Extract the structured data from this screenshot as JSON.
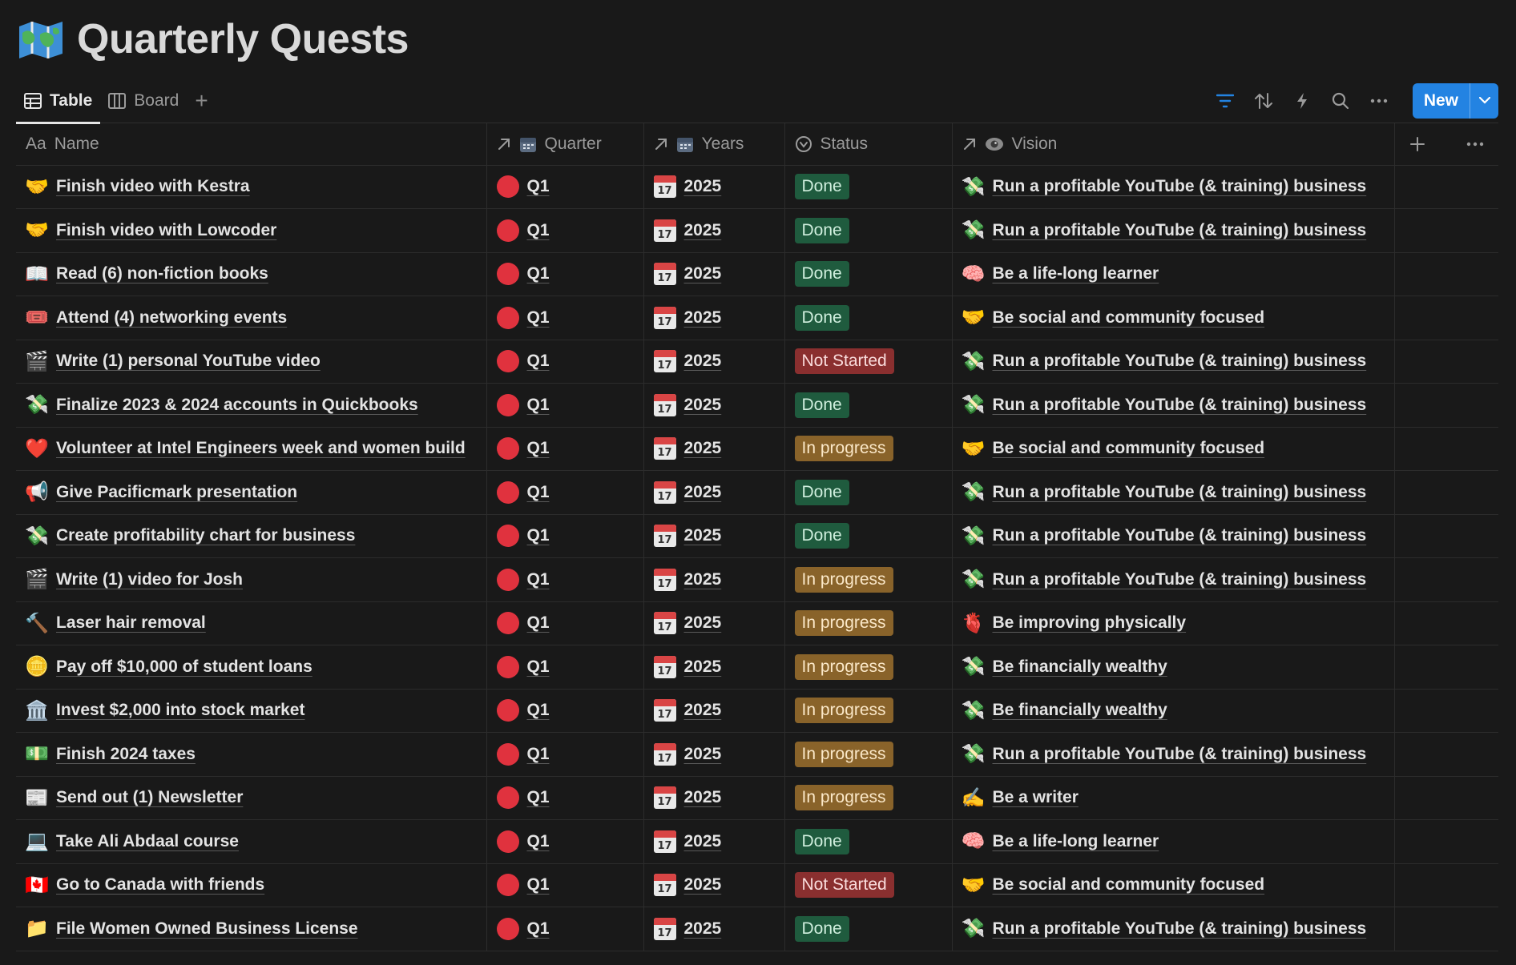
{
  "page": {
    "title": "Quarterly Quests",
    "icon": "map-icon"
  },
  "views": {
    "tabs": [
      {
        "label": "Table",
        "icon": "table-icon",
        "active": true
      },
      {
        "label": "Board",
        "icon": "board-icon",
        "active": false
      }
    ],
    "add_icon": "+",
    "new_label": "New"
  },
  "colors": {
    "accent": "#2383e2",
    "done": "#1f5b3e",
    "in_progress": "#89632a",
    "not_started": "#8a2f2f",
    "quarter_dot": "#e0323e"
  },
  "columns": {
    "name": "Name",
    "name_prefix": "Aa",
    "quarter": "Quarter",
    "years": "Years",
    "status": "Status",
    "vision": "Vision"
  },
  "calendar_glyph": "17",
  "rows": [
    {
      "icon": "🤝",
      "name": "Finish video with Kestra",
      "quarter": "Q1",
      "year": "2025",
      "status": "Done",
      "vision_icon": "💸",
      "vision": "Run a profitable YouTube (& training) business"
    },
    {
      "icon": "🤝",
      "name": "Finish video with Lowcoder",
      "quarter": "Q1",
      "year": "2025",
      "status": "Done",
      "vision_icon": "💸",
      "vision": "Run a profitable YouTube (& training) business"
    },
    {
      "icon": "📖",
      "name": "Read (6) non-fiction books",
      "quarter": "Q1",
      "year": "2025",
      "status": "Done",
      "vision_icon": "🧠",
      "vision": "Be a life-long learner"
    },
    {
      "icon": "🎟️",
      "name": "Attend (4) networking events",
      "quarter": "Q1",
      "year": "2025",
      "status": "Done",
      "vision_icon": "🤝",
      "vision": "Be social and community focused"
    },
    {
      "icon": "🎬",
      "name": "Write (1) personal YouTube video",
      "quarter": "Q1",
      "year": "2025",
      "status": "Not Started",
      "vision_icon": "💸",
      "vision": "Run a profitable YouTube (& training) business"
    },
    {
      "icon": "💸",
      "name": "Finalize 2023 & 2024 accounts in Quickbooks",
      "quarter": "Q1",
      "year": "2025",
      "status": "Done",
      "vision_icon": "💸",
      "vision": "Run a profitable YouTube (& training) business"
    },
    {
      "icon": "❤️",
      "name": "Volunteer at Intel Engineers week and women build",
      "quarter": "Q1",
      "year": "2025",
      "status": "In progress",
      "vision_icon": "🤝",
      "vision": "Be social and community focused"
    },
    {
      "icon": "📢",
      "name": "Give Pacificmark presentation",
      "quarter": "Q1",
      "year": "2025",
      "status": "Done",
      "vision_icon": "💸",
      "vision": "Run a profitable YouTube (& training) business"
    },
    {
      "icon": "💸",
      "name": "Create profitability chart for business",
      "quarter": "Q1",
      "year": "2025",
      "status": "Done",
      "vision_icon": "💸",
      "vision": "Run a profitable YouTube (& training) business"
    },
    {
      "icon": "🎬",
      "name": "Write (1) video for Josh",
      "quarter": "Q1",
      "year": "2025",
      "status": "In progress",
      "vision_icon": "💸",
      "vision": "Run a profitable YouTube (& training) business"
    },
    {
      "icon": "🔨",
      "name": "Laser hair removal",
      "quarter": "Q1",
      "year": "2025",
      "status": "In progress",
      "vision_icon": "🫀",
      "vision": "Be improving physically"
    },
    {
      "icon": "🪙",
      "name": "Pay off $10,000 of student loans",
      "quarter": "Q1",
      "year": "2025",
      "status": "In progress",
      "vision_icon": "💸",
      "vision": "Be financially wealthy"
    },
    {
      "icon": "🏛️",
      "name": "Invest $2,000 into stock market",
      "quarter": "Q1",
      "year": "2025",
      "status": "In progress",
      "vision_icon": "💸",
      "vision": "Be financially wealthy"
    },
    {
      "icon": "💵",
      "name": "Finish 2024 taxes",
      "quarter": "Q1",
      "year": "2025",
      "status": "In progress",
      "vision_icon": "💸",
      "vision": "Run a profitable YouTube (& training) business"
    },
    {
      "icon": "📰",
      "name": "Send out (1) Newsletter",
      "quarter": "Q1",
      "year": "2025",
      "status": "In progress",
      "vision_icon": "✍️",
      "vision": "Be a writer"
    },
    {
      "icon": "💻",
      "name": "Take Ali Abdaal course",
      "quarter": "Q1",
      "year": "2025",
      "status": "Done",
      "vision_icon": "🧠",
      "vision": "Be a life-long learner"
    },
    {
      "icon": "🇨🇦",
      "name": "Go to Canada with friends",
      "quarter": "Q1",
      "year": "2025",
      "status": "Not Started",
      "vision_icon": "🤝",
      "vision": "Be social and community focused"
    },
    {
      "icon": "📁",
      "name": "File Women Owned Business License",
      "quarter": "Q1",
      "year": "2025",
      "status": "Done",
      "vision_icon": "💸",
      "vision": "Run a profitable YouTube (& training) business"
    }
  ]
}
